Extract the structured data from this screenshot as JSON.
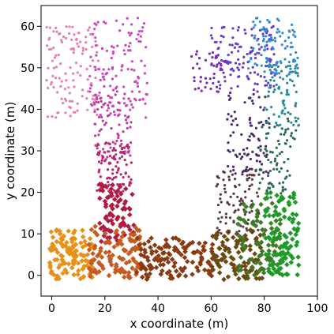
{
  "chart_data": {
    "type": "scatter",
    "xlabel": "x coordinate (m)",
    "ylabel": "y coordinate (m)",
    "xlim": [
      -4,
      100
    ],
    "ylim": [
      -5,
      65
    ],
    "xticks": [
      0,
      20,
      40,
      60,
      80,
      100
    ],
    "yticks": [
      0,
      10,
      20,
      30,
      40,
      50,
      60
    ],
    "grid": false,
    "legend": "none",
    "seed": 7,
    "marker_styles": {
      "dot": "small circle, upper region (y > ~12, except bottom band)",
      "diamond": "larger diamond, bottom band and lower arms"
    },
    "series": [
      {
        "count": 120,
        "x_range": [
          -2,
          18
        ],
        "y_range": [
          38,
          60
        ],
        "color": "#e87cb4",
        "marker": "dot"
      },
      {
        "count": 130,
        "x_range": [
          14,
          36
        ],
        "y_range": [
          38,
          62
        ],
        "color": "#c84ab8",
        "marker": "dot"
      },
      {
        "count": 80,
        "x_range": [
          16,
          30
        ],
        "y_range": [
          28,
          44
        ],
        "color": "#c03a9a",
        "marker": "dot"
      },
      {
        "count": 90,
        "x_range": [
          17,
          30
        ],
        "y_range": [
          20,
          32
        ],
        "color": "#b8246e",
        "marker": "dot"
      },
      {
        "count": 80,
        "x_range": [
          18,
          31
        ],
        "y_range": [
          8,
          22
        ],
        "color": "#b01c40",
        "marker": "diamond"
      },
      {
        "count": 120,
        "x_range": [
          -1,
          16
        ],
        "y_range": [
          -1,
          11
        ],
        "color": "#e8901a",
        "marker": "diamond"
      },
      {
        "count": 110,
        "x_range": [
          14,
          34
        ],
        "y_range": [
          -1,
          12
        ],
        "color": "#c85a20",
        "marker": "diamond"
      },
      {
        "count": 130,
        "x_range": [
          32,
          62
        ],
        "y_range": [
          -1,
          9
        ],
        "color": "#8a3a12",
        "marker": "diamond"
      },
      {
        "count": 100,
        "x_range": [
          60,
          80
        ],
        "y_range": [
          -1,
          11
        ],
        "color": "#6a4a10",
        "marker": "diamond"
      },
      {
        "count": 80,
        "x_range": [
          70,
          86
        ],
        "y_range": [
          0,
          18
        ],
        "color": "#3f7a2a",
        "marker": "diamond"
      },
      {
        "count": 110,
        "x_range": [
          80,
          93
        ],
        "y_range": [
          0,
          20
        ],
        "color": "#1f9a28",
        "marker": "diamond"
      },
      {
        "count": 90,
        "x_range": [
          62,
          78
        ],
        "y_range": [
          10,
          26
        ],
        "color": "#5a3a3a",
        "marker": "dot"
      },
      {
        "count": 90,
        "x_range": [
          66,
          82
        ],
        "y_range": [
          24,
          44
        ],
        "color": "#4a2a70",
        "marker": "dot"
      },
      {
        "count": 80,
        "x_range": [
          78,
          92
        ],
        "y_range": [
          18,
          38
        ],
        "color": "#2a6a5a",
        "marker": "dot"
      },
      {
        "count": 80,
        "x_range": [
          80,
          93
        ],
        "y_range": [
          36,
          52
        ],
        "color": "#2a8a9a",
        "marker": "dot"
      },
      {
        "count": 120,
        "x_range": [
          60,
          84
        ],
        "y_range": [
          44,
          60
        ],
        "color": "#6a3ad0",
        "marker": "dot"
      },
      {
        "count": 100,
        "x_range": [
          74,
          93
        ],
        "y_range": [
          48,
          62
        ],
        "color": "#3a8ad0",
        "marker": "dot"
      },
      {
        "count": 40,
        "x_range": [
          52,
          66
        ],
        "y_range": [
          44,
          54
        ],
        "color": "#7a2ab0",
        "marker": "dot"
      }
    ]
  },
  "colors": {
    "frame": "#000000",
    "background": "#ffffff"
  }
}
